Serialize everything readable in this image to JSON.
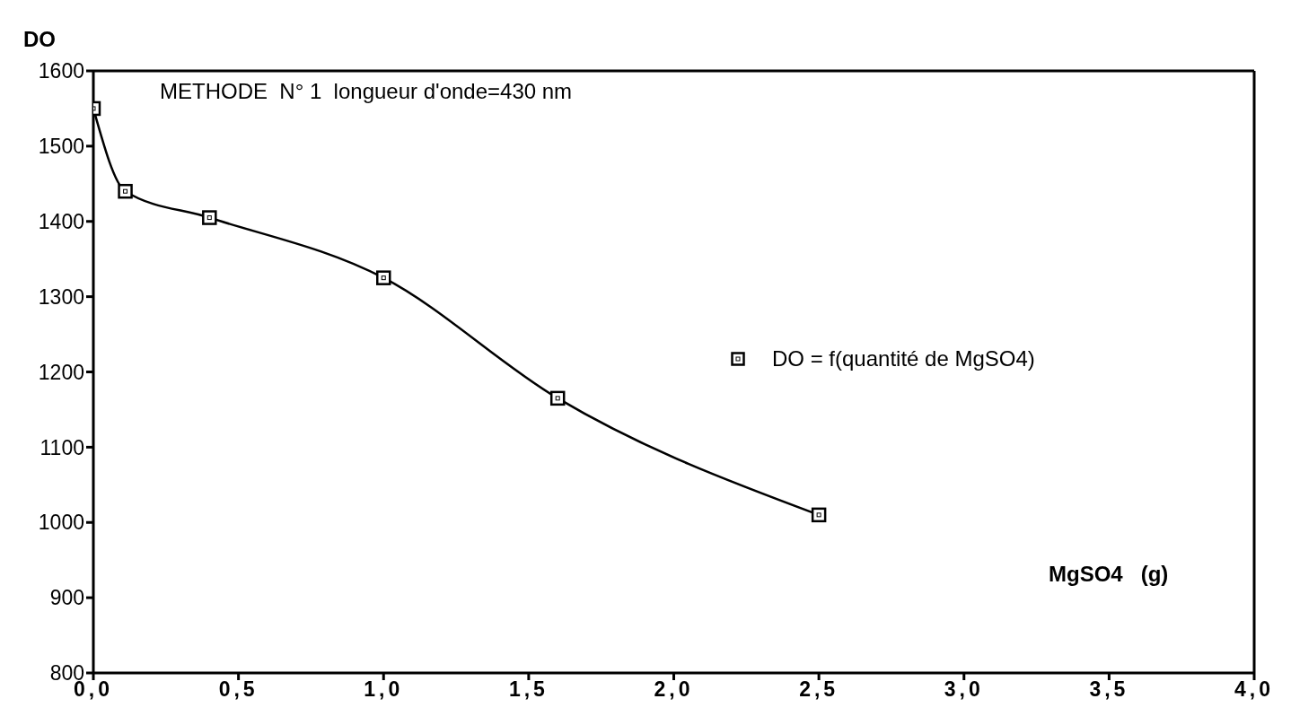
{
  "chart_data": {
    "type": "line",
    "xlabel": "MgSO4   (g)",
    "ylabel": "DO",
    "annotations": [
      "METHODE  N° 1  longueur d'onde=430 nm"
    ],
    "x": [
      0,
      0.11,
      0.4,
      1.0,
      1.6,
      2.5
    ],
    "series": [
      {
        "name": "DO = f(quantité de MgSO4)",
        "color": "#000000",
        "values": [
          1550,
          1440,
          1405,
          1325,
          1165,
          1010
        ]
      }
    ],
    "xlim": [
      0,
      4
    ],
    "xticks": [
      {
        "value": 0,
        "label": "0,0"
      },
      {
        "value": 0.5,
        "label": "0,5"
      },
      {
        "value": 1,
        "label": "1,0"
      },
      {
        "value": 1.5,
        "label": "1,5"
      },
      {
        "value": 2,
        "label": "2,0"
      },
      {
        "value": 2.5,
        "label": "2,5"
      },
      {
        "value": 3,
        "label": "3,0"
      },
      {
        "value": 3.5,
        "label": "3,5"
      },
      {
        "value": 4,
        "label": "4,0"
      }
    ],
    "ylim": [
      800,
      1600
    ],
    "yticks": [
      800,
      900,
      1000,
      1100,
      1200,
      1300,
      1400,
      1500,
      1600
    ],
    "grid": false,
    "legend": "right",
    "marker": "square",
    "line_style": "solid"
  }
}
